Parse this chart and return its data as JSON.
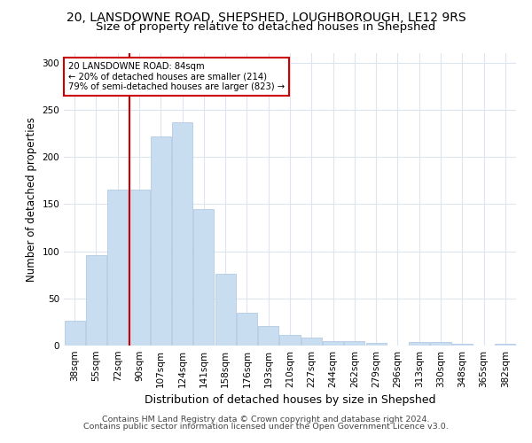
{
  "title_line1": "20, LANSDOWNE ROAD, SHEPSHED, LOUGHBOROUGH, LE12 9RS",
  "title_line2": "Size of property relative to detached houses in Shepshed",
  "xlabel": "Distribution of detached houses by size in Shepshed",
  "ylabel": "Number of detached properties",
  "bar_color": "#c9ddf0",
  "bar_edge_color": "#aac4e0",
  "vline_x_index": 3,
  "vline_color": "#cc0000",
  "annotation_title": "20 LANSDOWNE ROAD: 84sqm",
  "annotation_line2": "← 20% of detached houses are smaller (214)",
  "annotation_line3": "79% of semi-detached houses are larger (823) →",
  "annotation_box_color": "#cc0000",
  "footnote_line1": "Contains HM Land Registry data © Crown copyright and database right 2024.",
  "footnote_line2": "Contains public sector information licensed under the Open Government Licence v3.0.",
  "categories": [
    "38sqm",
    "55sqm",
    "72sqm",
    "90sqm",
    "107sqm",
    "124sqm",
    "141sqm",
    "158sqm",
    "176sqm",
    "193sqm",
    "210sqm",
    "227sqm",
    "244sqm",
    "262sqm",
    "279sqm",
    "296sqm",
    "313sqm",
    "330sqm",
    "348sqm",
    "365sqm",
    "382sqm"
  ],
  "bar_heights": [
    26,
    96,
    165,
    165,
    222,
    237,
    145,
    76,
    35,
    21,
    11,
    8,
    5,
    5,
    3,
    0,
    4,
    4,
    2,
    0,
    2
  ],
  "ylim": [
    0,
    310
  ],
  "yticks": [
    0,
    50,
    100,
    150,
    200,
    250,
    300
  ],
  "background_color": "#ffffff",
  "grid_color": "#dde5f0",
  "title_fontsize": 10,
  "subtitle_fontsize": 9.5,
  "axis_label_fontsize": 8.5,
  "tick_fontsize": 7.5,
  "footnote_fontsize": 6.8
}
